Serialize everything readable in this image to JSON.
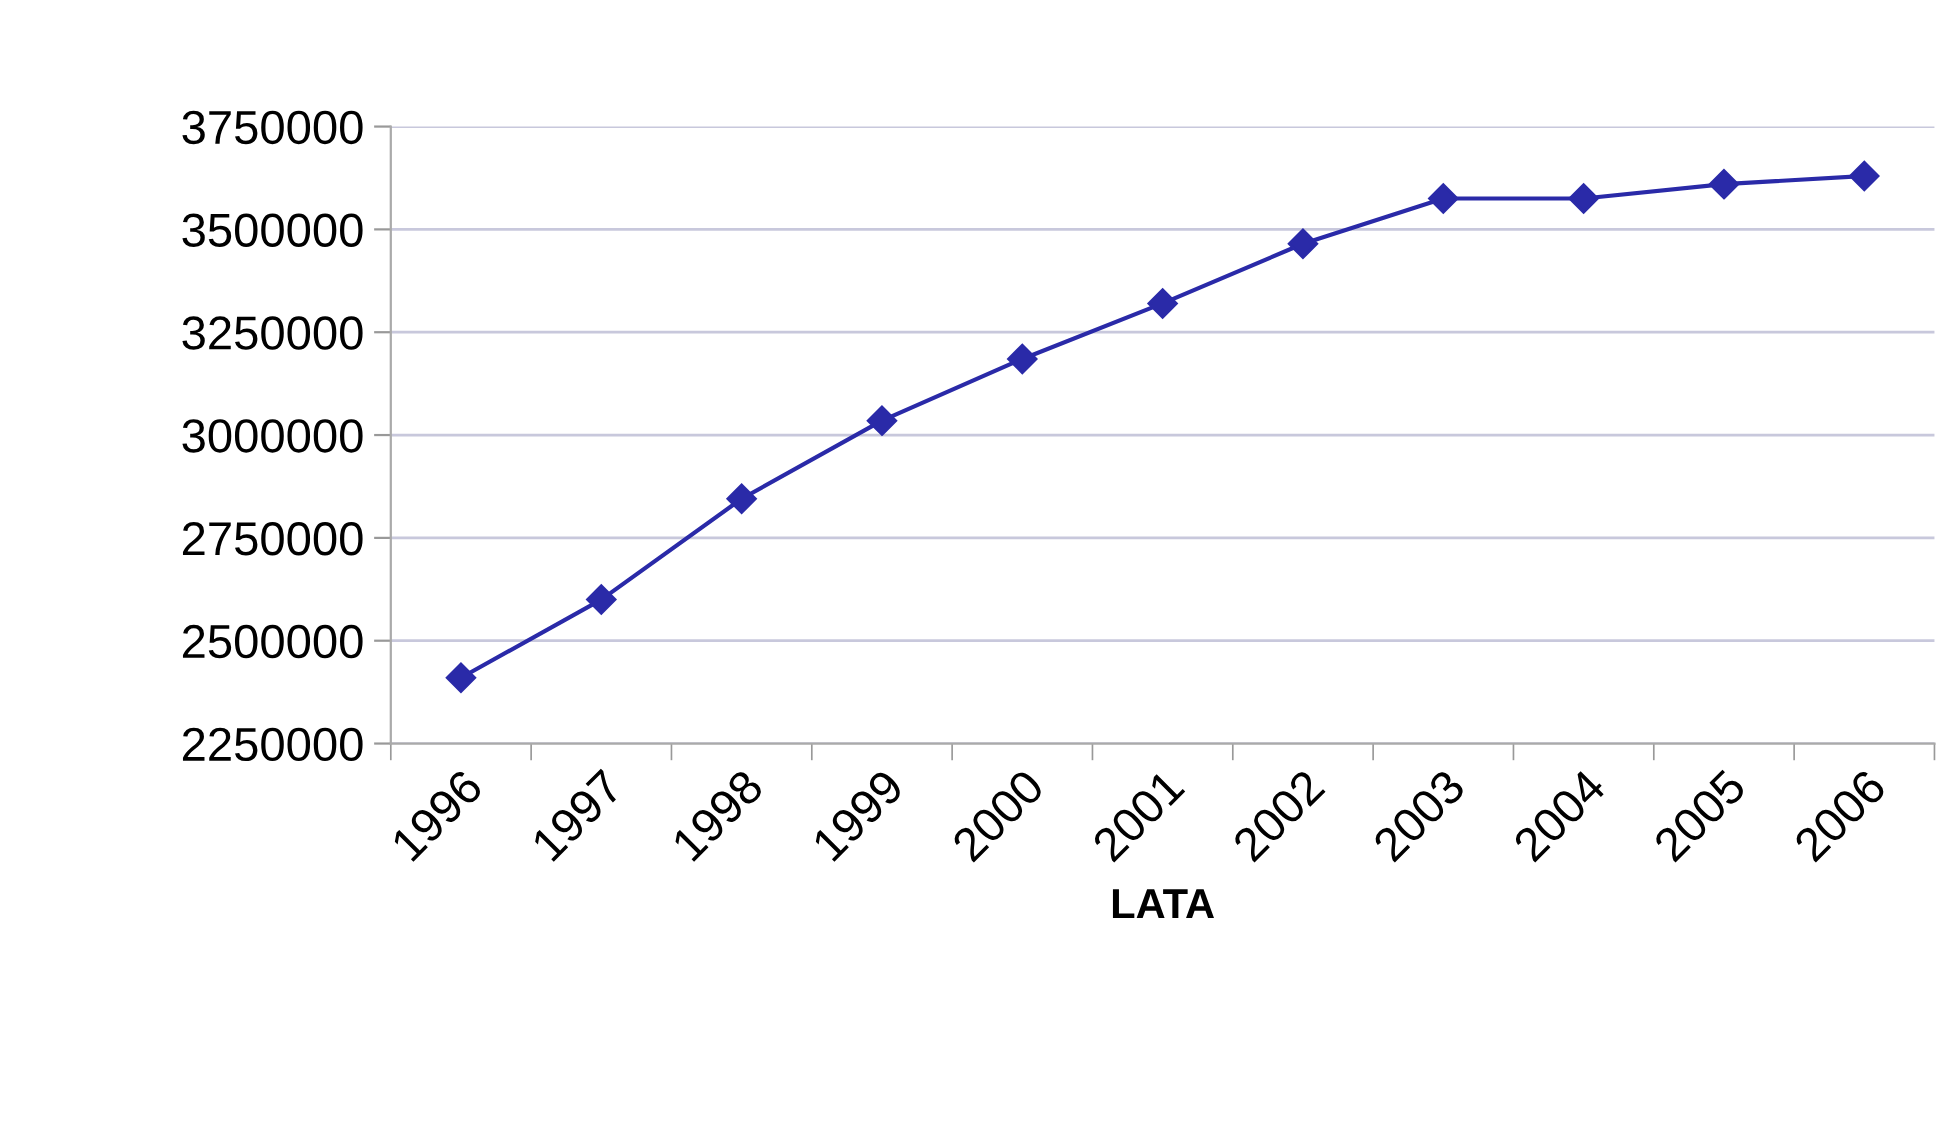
{
  "chart_data": {
    "type": "line",
    "xlabel": "LATA",
    "categories": [
      "1996",
      "1997",
      "1998",
      "1999",
      "2000",
      "2001",
      "2002",
      "2003",
      "2004",
      "2005",
      "2006"
    ],
    "series": [
      {
        "color": "#2a2aa8",
        "values": [
          2410000,
          2600000,
          2845000,
          3035000,
          3185000,
          3320000,
          3465000,
          3575000,
          3575000,
          3610000,
          3630000
        ]
      }
    ],
    "ylim": [
      2250000,
      3750000
    ],
    "yticks": [
      2250000,
      2500000,
      2750000,
      3000000,
      3250000,
      3500000,
      3750000
    ],
    "grid": "y",
    "marker": "diamond",
    "line_style": "solid",
    "legend": false
  }
}
